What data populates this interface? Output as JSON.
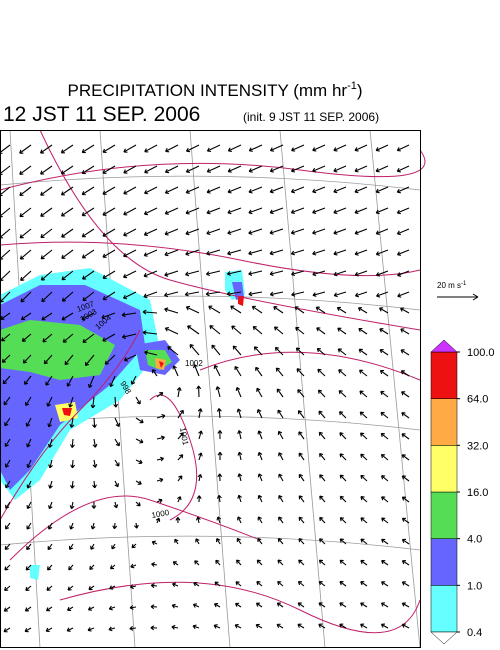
{
  "header": {
    "title": "PRECIPITATION INTENSITY (mm hr",
    "title_sup": "-1",
    "title_end": ")",
    "valid_time": "12 JST 11 SEP. 2006",
    "init_time": "(init. 9 JST 11 SEP. 2006)"
  },
  "wind_scale": {
    "label": "20 m s",
    "label_sup": "-1"
  },
  "colorbar": {
    "levels": [
      0.4,
      {
        "value": 1,
        "label": "1.0"
      },
      {
        "value": 4,
        "label": "4.0"
      },
      {
        "value": 16,
        "label": "16.0"
      },
      {
        "value": 32,
        "label": "32.0"
      },
      {
        "value": 64,
        "label": "64.0"
      },
      {
        "value": 100,
        "label": "100.0"
      }
    ],
    "colors": [
      "#66ffff",
      "#6666ff",
      "#55dd55",
      "#ffff66",
      "#ffaa44",
      "#ee1111"
    ],
    "under_color": "#ffffff",
    "over_color": "#cc33ff"
  },
  "contour_labels": [
    "1007",
    "1004",
    "1003",
    "1002",
    "998",
    "1001",
    "1000"
  ]
}
